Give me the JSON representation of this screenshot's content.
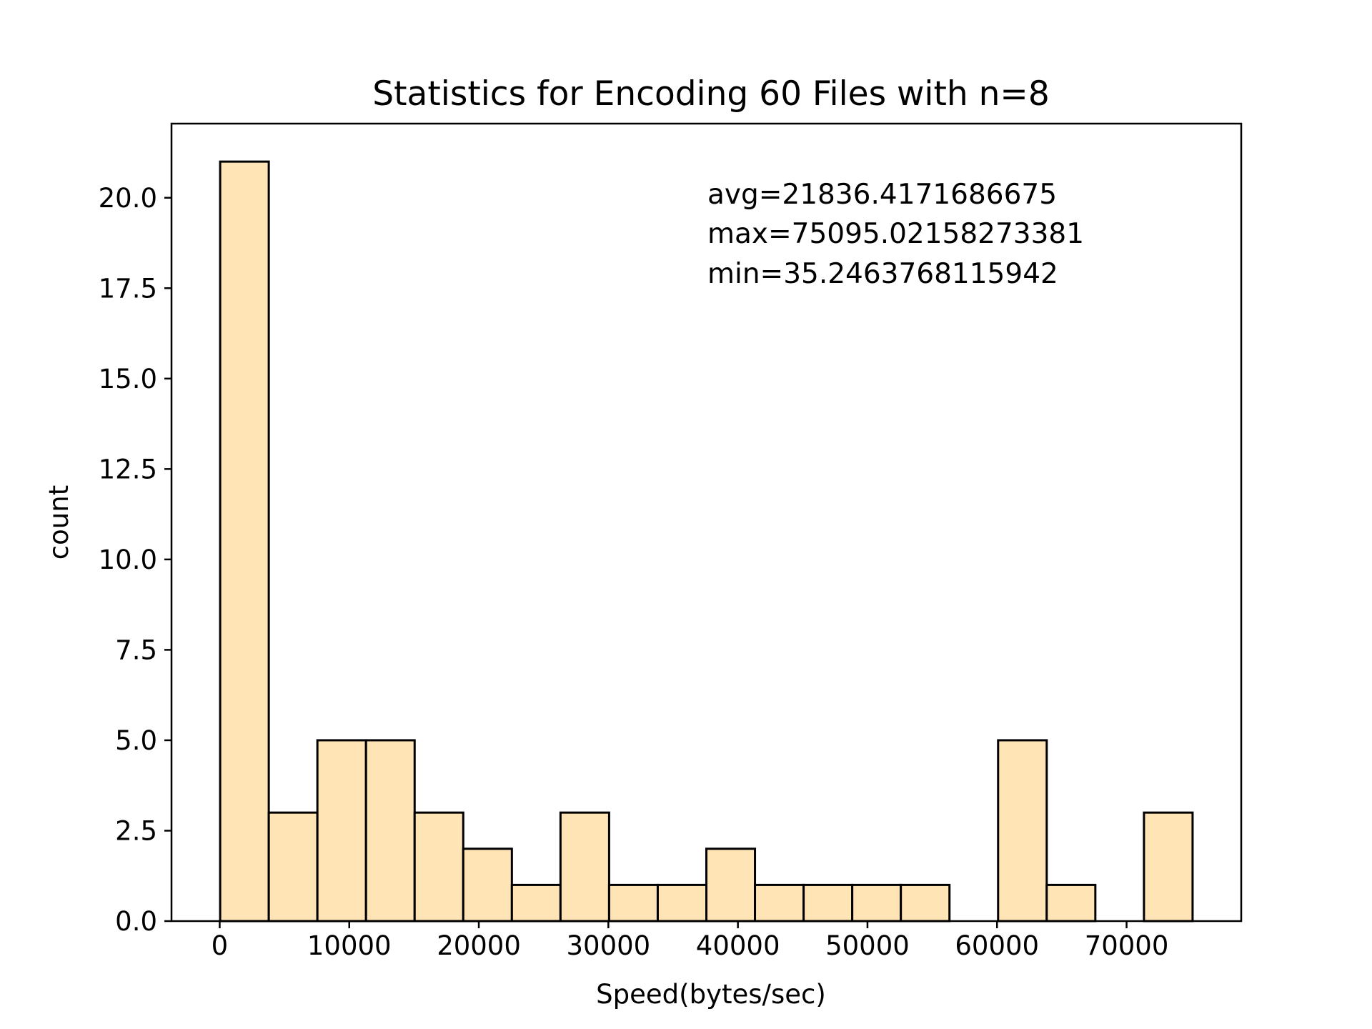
{
  "chart_data": {
    "type": "bar",
    "title": "Statistics for Encoding 60 Files with n=8",
    "xlabel": "Speed(bytes/sec)",
    "ylabel": "count",
    "bin_min": 35.2463768115942,
    "bin_max": 75095.02158273381,
    "bin_count": 20,
    "values": [
      21,
      3,
      5,
      5,
      3,
      2,
      1,
      3,
      1,
      1,
      2,
      1,
      1,
      1,
      1,
      0,
      5,
      1,
      0,
      3
    ],
    "xlim": [
      -3720,
      78850
    ],
    "ylim": [
      0,
      22.05
    ],
    "xticks": [
      0,
      10000,
      20000,
      30000,
      40000,
      50000,
      60000,
      70000
    ],
    "xtick_labels": [
      "0",
      "10000",
      "20000",
      "30000",
      "40000",
      "50000",
      "60000",
      "70000"
    ],
    "yticks": [
      0,
      2.5,
      5,
      7.5,
      10,
      12.5,
      15,
      17.5,
      20
    ],
    "ytick_labels": [
      "0.0",
      "2.5",
      "5.0",
      "7.5",
      "10.0",
      "12.5",
      "15.0",
      "17.5",
      "20.0"
    ],
    "annotations": [
      "avg=21836.4171686675",
      "max=75095.02158273381",
      "min=35.2463768115942"
    ],
    "bar_color": "#ffe4b5",
    "edge_color": "#000000",
    "grid": false,
    "legend": "none"
  }
}
